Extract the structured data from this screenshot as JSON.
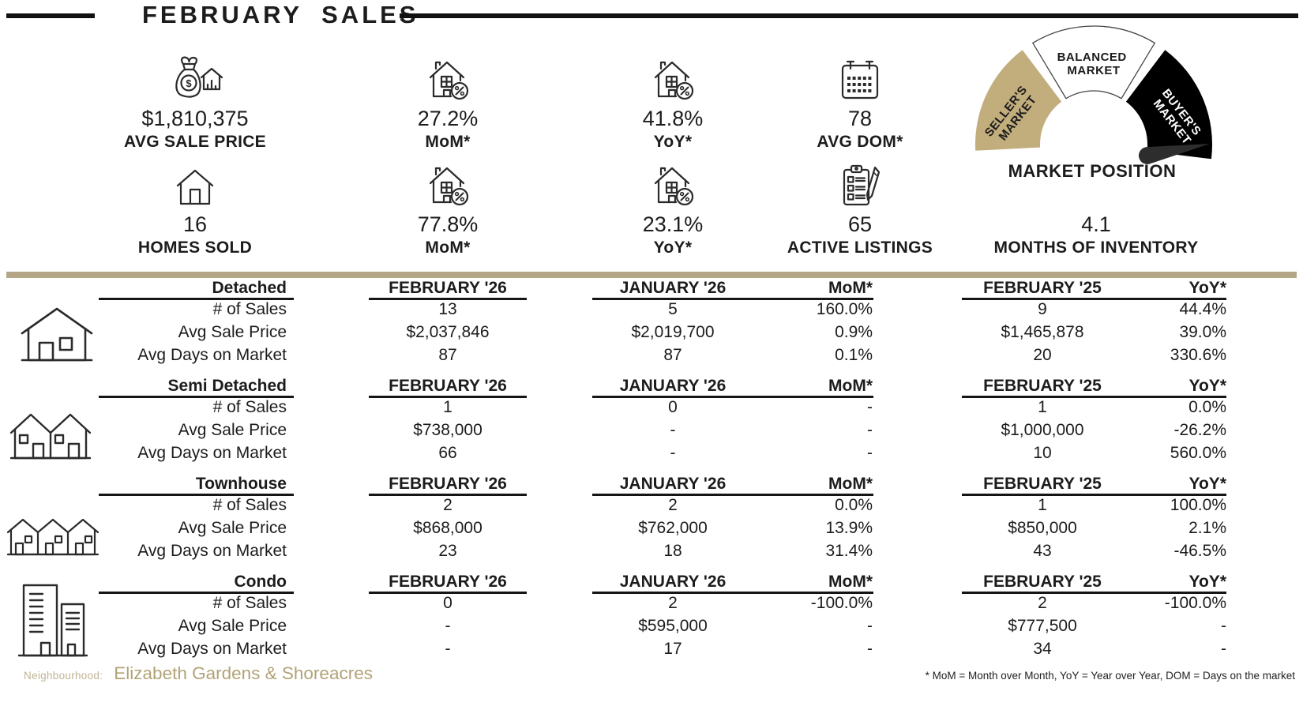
{
  "title": "FEBRUARY SALES",
  "stats": {
    "row1": [
      {
        "icon": "money-bag-house-icon",
        "value": "$1,810,375",
        "label": "AVG SALE PRICE"
      },
      {
        "icon": "house-percent-icon",
        "value": "27.2%",
        "label": "MoM*"
      },
      {
        "icon": "house-percent-icon",
        "value": "41.8%",
        "label": "YoY*"
      },
      {
        "icon": "calendar-icon",
        "value": "78",
        "label": "AVG DOM*"
      }
    ],
    "row2": [
      {
        "icon": "house-icon",
        "value": "16",
        "label": "HOMES SOLD"
      },
      {
        "icon": "house-percent-icon",
        "value": "77.8%",
        "label": "MoM*"
      },
      {
        "icon": "house-percent-icon",
        "value": "23.1%",
        "label": "YoY*"
      },
      {
        "icon": "clipboard-pen-icon",
        "value": "65",
        "label": "ACTIVE LISTINGS"
      },
      {
        "icon": "none",
        "value": "4.1",
        "label": "MONTHS OF INVENTORY"
      }
    ]
  },
  "gauge": {
    "title": "MARKET POSITION",
    "segments": {
      "seller": [
        "SELLER'S",
        "MARKET"
      ],
      "balanced": [
        "BALANCED",
        "MARKET"
      ],
      "buyer": [
        "BUYER'S",
        "MARKET"
      ]
    },
    "colors": {
      "seller": "#c2ad7d",
      "balanced": "#ffffff",
      "buyer": "#000000",
      "needle": "#2d2d2d"
    },
    "needle_points_to": "buyer"
  },
  "table": {
    "columns": [
      "FEBRUARY '26",
      "JANUARY '26",
      "MoM*",
      "FEBRUARY '25",
      "YoY*"
    ],
    "row_labels": [
      "# of Sales",
      "Avg Sale Price",
      "Avg Days on Market"
    ],
    "sections": [
      {
        "type": "Detached",
        "icon": "detached-house-icon",
        "rows": [
          [
            "13",
            "5",
            "160.0%",
            "9",
            "44.4%"
          ],
          [
            "$2,037,846",
            "$2,019,700",
            "0.9%",
            "$1,465,878",
            "39.0%"
          ],
          [
            "87",
            "87",
            "0.1%",
            "20",
            "330.6%"
          ]
        ]
      },
      {
        "type": "Semi Detached",
        "icon": "semi-detached-house-icon",
        "rows": [
          [
            "1",
            "0",
            "-",
            "1",
            "0.0%"
          ],
          [
            "$738,000",
            "-",
            "-",
            "$1,000,000",
            "-26.2%"
          ],
          [
            "66",
            "-",
            "-",
            "10",
            "560.0%"
          ]
        ]
      },
      {
        "type": "Townhouse",
        "icon": "townhouse-icon",
        "rows": [
          [
            "2",
            "2",
            "0.0%",
            "1",
            "100.0%"
          ],
          [
            "$868,000",
            "$762,000",
            "13.9%",
            "$850,000",
            "2.1%"
          ],
          [
            "23",
            "18",
            "31.4%",
            "43",
            "-46.5%"
          ]
        ]
      },
      {
        "type": "Condo",
        "icon": "condo-icon",
        "rows": [
          [
            "0",
            "2",
            "-100.0%",
            "2",
            "-100.0%"
          ],
          [
            "-",
            "$595,000",
            "-",
            "$777,500",
            "-"
          ],
          [
            "-",
            "17",
            "-",
            "34",
            "-"
          ]
        ]
      }
    ]
  },
  "footer": {
    "neighbourhood_label": "Neighbourhood:",
    "neighbourhood_name": "Elizabeth Gardens & Shoreacres",
    "footnote": "* MoM = Month over Month, YoY = Year over Year, DOM = Days on the market"
  },
  "colors": {
    "accent_gold": "#b3a787",
    "text": "#1c1c1c",
    "neighbourhood_gold": "#b1a377"
  }
}
